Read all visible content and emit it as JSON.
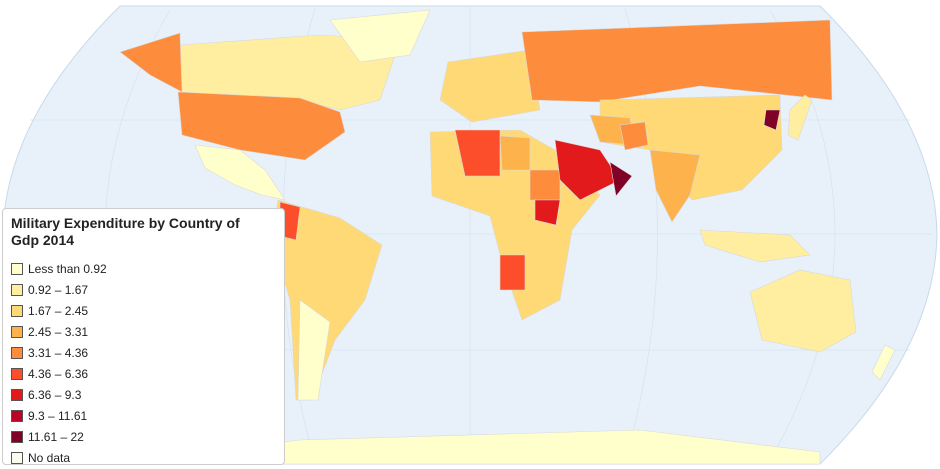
{
  "legend": {
    "title": "Military Expenditure by Country of Gdp 2014",
    "items": [
      {
        "label": "Less than 0.92",
        "color": "#ffffcc"
      },
      {
        "label": "0.92 – 1.67",
        "color": "#ffeda0"
      },
      {
        "label": "1.67 – 2.45",
        "color": "#fed976"
      },
      {
        "label": "2.45 – 3.31",
        "color": "#feb24c"
      },
      {
        "label": "3.31 – 4.36",
        "color": "#fd8d3c"
      },
      {
        "label": "4.36 – 6.36",
        "color": "#fc4e2a"
      },
      {
        "label": "6.36 – 9.3",
        "color": "#e31a1c"
      },
      {
        "label": "9.3 – 11.61",
        "color": "#bd0026"
      },
      {
        "label": "11.61 – 22",
        "color": "#800026"
      },
      {
        "label": "No data",
        "color": "#fbfbf0"
      }
    ]
  }
}
